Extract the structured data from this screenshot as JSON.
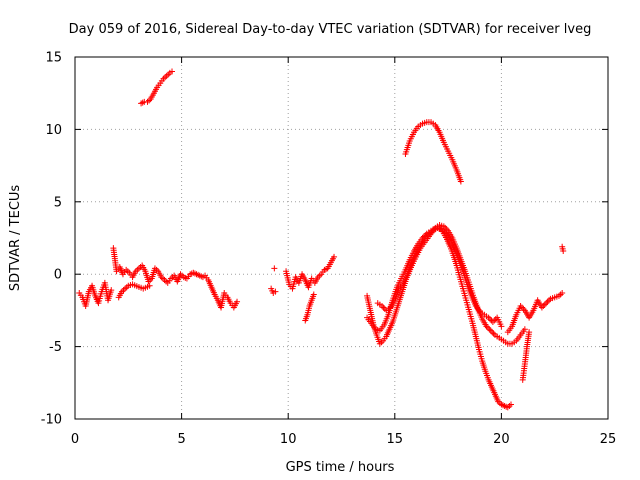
{
  "chart_data": {
    "type": "scatter",
    "title": "Day 059 of 2016, Sidereal Day-to-day VTEC variation (SDTVAR) for receiver lveg",
    "xlabel": "GPS time / hours",
    "ylabel": "SDTVAR / TECUs",
    "xlim": [
      0,
      25
    ],
    "ylim": [
      -10,
      15
    ],
    "xticks": [
      "0",
      "5",
      "10",
      "15",
      "20",
      "25"
    ],
    "yticks": [
      "-10",
      "-5",
      "0",
      "5",
      "10",
      "15"
    ],
    "grid": true,
    "marker": "+",
    "color": "#ff0000",
    "series": [
      {
        "name": "seg1",
        "x": [
          0.2,
          0.35,
          0.5,
          0.65,
          0.8,
          0.95,
          1.1,
          1.25,
          1.4,
          1.55,
          1.7
        ],
        "y": [
          -1.3,
          -1.6,
          -2.2,
          -1.2,
          -0.8,
          -1.5,
          -2.0,
          -1.2,
          -0.6,
          -1.8,
          -1.1
        ]
      },
      {
        "name": "seg2",
        "x": [
          1.8,
          1.95,
          2.1,
          2.25,
          2.4,
          2.55,
          2.7,
          2.85,
          3.0,
          3.15,
          3.3,
          3.45,
          3.6,
          3.75,
          3.9,
          4.05,
          4.2,
          4.35,
          4.5,
          4.65,
          4.8,
          4.95,
          5.1,
          5.25,
          5.4,
          5.55,
          5.7,
          5.85,
          6.0
        ],
        "y": [
          1.8,
          0.2,
          0.5,
          0.0,
          0.3,
          0.1,
          -0.2,
          0.2,
          0.4,
          0.6,
          0.2,
          -0.5,
          -0.3,
          0.4,
          0.2,
          -0.2,
          -0.4,
          -0.6,
          -0.3,
          -0.1,
          -0.5,
          0.0,
          -0.2,
          -0.3,
          0.0,
          0.1,
          0.0,
          -0.1,
          -0.2
        ]
      },
      {
        "name": "seg3",
        "x": [
          2.05,
          2.2,
          2.35,
          2.5,
          2.7,
          3.2,
          3.5
        ],
        "y": [
          -1.6,
          -1.2,
          -1.0,
          -0.8,
          -0.7,
          -1.0,
          -0.8
        ]
      },
      {
        "name": "seg4",
        "x": [
          3.1,
          3.25,
          3.4,
          3.55,
          3.7,
          3.85,
          4.0,
          4.15,
          4.3,
          4.45,
          4.55
        ],
        "y": [
          11.8,
          11.9,
          11.9,
          12.1,
          12.5,
          12.9,
          13.2,
          13.5,
          13.7,
          13.9,
          14.0
        ]
      },
      {
        "name": "seg5",
        "x": [
          6.1,
          6.25,
          6.4,
          6.55,
          6.7,
          6.85,
          7.0,
          7.15,
          7.3,
          7.45,
          7.6
        ],
        "y": [
          -0.1,
          -0.4,
          -0.9,
          -1.4,
          -1.8,
          -2.3,
          -1.3,
          -1.6,
          -2.0,
          -2.3,
          -1.9
        ]
      },
      {
        "name": "seg6",
        "x": [
          9.2,
          9.3,
          9.4
        ],
        "y": [
          -1.0,
          -1.3,
          -1.2
        ]
      },
      {
        "name": "seg7",
        "x": [
          9.35
        ],
        "y": [
          0.4
        ]
      },
      {
        "name": "seg8",
        "x": [
          9.9,
          10.05,
          10.2,
          10.35,
          10.5,
          10.65,
          10.8,
          10.95,
          11.1,
          11.25,
          11.4,
          11.55,
          11.7,
          11.85,
          12.0,
          12.15
        ],
        "y": [
          0.2,
          -0.7,
          -1.0,
          -0.2,
          -0.6,
          0.0,
          -0.4,
          -0.9,
          -0.3,
          -0.6,
          -0.2,
          0.0,
          0.3,
          0.4,
          0.8,
          1.2
        ]
      },
      {
        "name": "seg9",
        "x": [
          10.8,
          10.9,
          11.0,
          11.1,
          11.2
        ],
        "y": [
          -3.2,
          -2.8,
          -2.2,
          -1.8,
          -1.4
        ]
      },
      {
        "name": "seg10",
        "x": [
          13.7,
          13.85,
          14.0,
          14.15,
          14.3,
          14.45,
          14.6,
          14.75,
          14.9,
          15.05,
          15.2,
          15.35,
          15.5,
          15.65,
          15.8,
          15.95,
          16.1,
          16.25,
          16.4,
          16.55,
          16.7,
          16.85,
          17.0,
          17.15,
          17.3,
          17.45,
          17.6,
          17.75,
          17.9,
          18.05,
          18.2,
          18.35,
          18.5,
          18.65,
          18.8,
          18.95,
          19.1,
          19.25,
          19.4,
          19.55,
          19.7,
          19.85,
          20.0,
          20.15,
          20.3,
          20.45
        ],
        "y": [
          -1.5,
          -2.5,
          -3.5,
          -4.2,
          -4.8,
          -4.6,
          -4.3,
          -3.8,
          -3.3,
          -2.6,
          -1.9,
          -1.2,
          -0.5,
          0.2,
          0.8,
          1.3,
          1.7,
          2.1,
          2.5,
          2.7,
          2.9,
          3.1,
          3.2,
          3.1,
          2.8,
          2.4,
          1.9,
          1.3,
          0.6,
          -0.2,
          -1.0,
          -1.8,
          -2.6,
          -3.4,
          -4.3,
          -5.2,
          -6.0,
          -6.7,
          -7.3,
          -7.8,
          -8.3,
          -8.8,
          -9.0,
          -9.1,
          -9.2,
          -9.0
        ]
      },
      {
        "name": "seg11",
        "x": [
          13.7,
          13.9,
          14.1,
          14.3,
          14.5,
          14.7,
          14.9,
          15.1,
          15.3,
          15.5,
          15.7,
          15.9,
          16.1,
          16.3,
          16.5,
          16.7,
          16.9,
          17.1,
          17.3,
          17.5,
          17.7,
          17.9,
          18.1,
          18.3,
          18.5,
          18.7,
          18.9,
          19.1,
          19.3,
          19.5,
          19.7,
          19.9,
          20.1,
          20.3,
          20.5,
          20.7,
          20.9,
          21.1
        ],
        "y": [
          -3.0,
          -3.4,
          -3.8,
          -3.9,
          -3.5,
          -2.8,
          -1.8,
          -0.9,
          -0.3,
          0.3,
          1.0,
          1.6,
          2.1,
          2.5,
          2.8,
          3.0,
          3.2,
          3.4,
          3.3,
          3.0,
          2.5,
          1.8,
          1.0,
          0.2,
          -0.7,
          -1.6,
          -2.4,
          -3.1,
          -3.6,
          -3.9,
          -4.2,
          -4.4,
          -4.6,
          -4.8,
          -4.8,
          -4.6,
          -4.2,
          -3.8
        ]
      },
      {
        "name": "seg12",
        "x": [
          14.2,
          14.4,
          14.6,
          14.8,
          15.0,
          15.2,
          15.4,
          15.6,
          15.8,
          16.0,
          16.2,
          16.4,
          16.6,
          16.8,
          17.0,
          17.2,
          17.4,
          17.6,
          17.8,
          18.0,
          18.2,
          18.4,
          18.6,
          18.8,
          19.0,
          19.2,
          19.4,
          19.6,
          19.8,
          20.0
        ],
        "y": [
          -2.0,
          -2.2,
          -2.5,
          -2.3,
          -1.8,
          -1.0,
          -0.6,
          -0.1,
          0.6,
          1.2,
          1.8,
          2.2,
          2.6,
          3.0,
          3.2,
          3.1,
          2.8,
          2.3,
          1.7,
          1.0,
          0.2,
          -0.7,
          -1.5,
          -2.2,
          -2.6,
          -2.8,
          -3.0,
          -3.3,
          -3.0,
          -3.6
        ]
      },
      {
        "name": "seg13",
        "x": [
          15.5,
          15.7,
          15.9,
          16.1,
          16.3,
          16.5,
          16.7,
          16.9,
          17.1,
          17.3,
          17.5,
          17.7,
          17.9,
          18.1
        ],
        "y": [
          8.3,
          9.2,
          9.8,
          10.2,
          10.4,
          10.5,
          10.5,
          10.3,
          9.8,
          9.1,
          8.5,
          7.9,
          7.2,
          6.4
        ]
      },
      {
        "name": "seg14",
        "x": [
          20.3,
          20.5,
          20.7,
          20.9,
          21.1,
          21.3,
          21.5,
          21.7,
          21.9,
          22.1,
          22.3,
          22.5,
          22.7,
          22.85
        ],
        "y": [
          -4.0,
          -3.6,
          -2.8,
          -2.2,
          -2.5,
          -3.0,
          -2.5,
          -1.8,
          -2.3,
          -2.0,
          -1.7,
          -1.6,
          -1.5,
          -1.3
        ]
      },
      {
        "name": "seg15",
        "x": [
          21.0,
          21.1,
          21.2,
          21.3
        ],
        "y": [
          -7.3,
          -6.2,
          -5.0,
          -4.0
        ]
      },
      {
        "name": "seg16",
        "x": [
          22.85,
          22.9
        ],
        "y": [
          1.9,
          1.6
        ]
      }
    ]
  }
}
